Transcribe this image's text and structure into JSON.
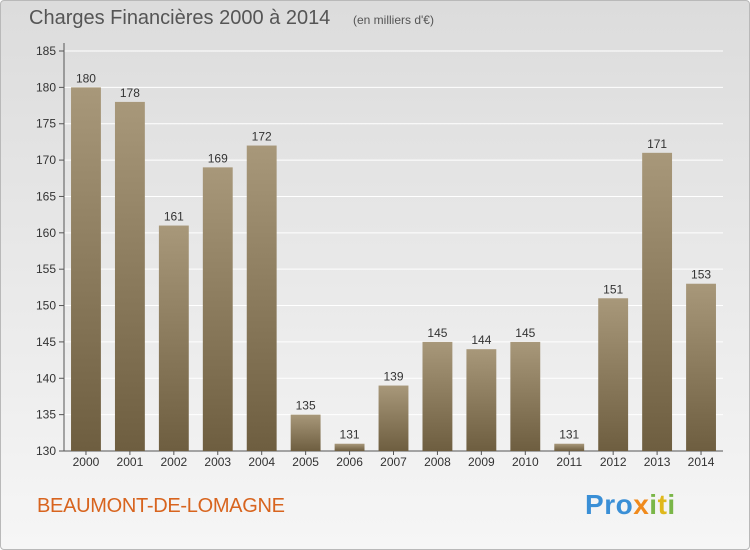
{
  "title": "Charges Financières 2000 à 2014",
  "unit": "(en milliers d'€)",
  "commune": "BEAUMONT-DE-LOMAGNE",
  "logo": {
    "text": "Proxiti",
    "letters": [
      {
        "ch": "P",
        "color": "#3a8fd6"
      },
      {
        "ch": "r",
        "color": "#3a8fd6"
      },
      {
        "ch": "o",
        "color": "#3a8fd6"
      },
      {
        "ch": "x",
        "color": "#f08a1c"
      },
      {
        "ch": "i",
        "color": "#7ab648"
      },
      {
        "ch": "t",
        "color": "#e0b81c"
      },
      {
        "ch": "i",
        "color": "#7ab648"
      }
    ]
  },
  "colors": {
    "bar_top": "#a8987a",
    "bar_bottom": "#6e5e40",
    "grid": "#ffffff",
    "axis": "#555555"
  },
  "chart_data": {
    "type": "bar",
    "categories": [
      "2000",
      "2001",
      "2002",
      "2003",
      "2004",
      "2005",
      "2006",
      "2007",
      "2008",
      "2009",
      "2010",
      "2011",
      "2012",
      "2013",
      "2014"
    ],
    "values": [
      180,
      178,
      161,
      169,
      172,
      135,
      131,
      139,
      145,
      144,
      145,
      131,
      151,
      171,
      153
    ],
    "title": "Charges Financières 2000 à 2014",
    "subtitle": "(en milliers d'€)",
    "xlabel": "",
    "ylabel": "",
    "ylim": [
      130,
      185
    ],
    "yticks": [
      130,
      135,
      140,
      145,
      150,
      155,
      160,
      165,
      170,
      175,
      180,
      185
    ],
    "grid": true,
    "legend": "none"
  }
}
